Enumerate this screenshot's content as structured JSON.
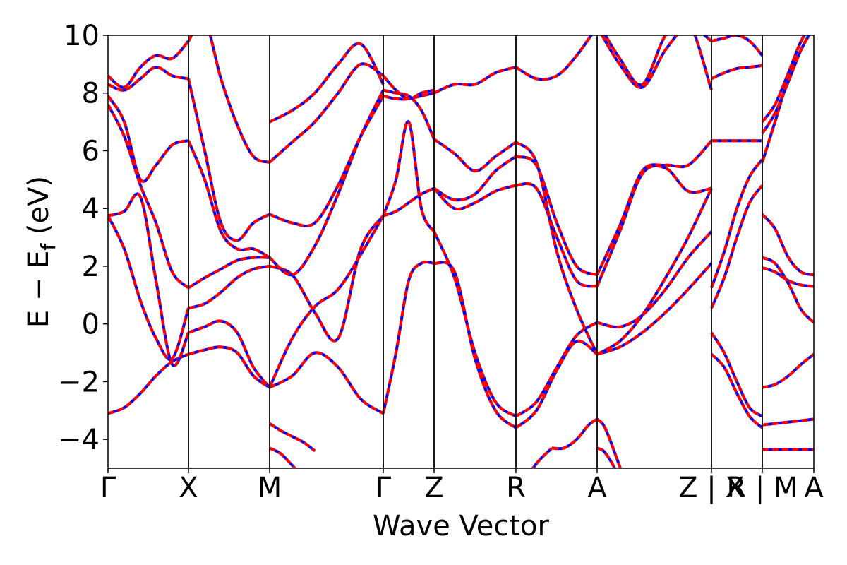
{
  "chart_data": {
    "type": "line",
    "title": "",
    "xlabel": "Wave Vector",
    "ylabel": "E − E",
    "ylabel_subscript": "f",
    "ylabel_unit": " (eV)",
    "ylim": [
      -5,
      10
    ],
    "yticks": [
      -4,
      -2,
      0,
      2,
      4,
      6,
      8,
      10
    ],
    "ytick_labels": [
      "−4",
      "−2",
      "0",
      "2",
      "4",
      "6",
      "8",
      "10"
    ],
    "xlim": [
      0,
      100
    ],
    "xticks": [
      0,
      11.4,
      22.9,
      39.0,
      46.2,
      57.8,
      69.3,
      85.5,
      92.7,
      100
    ],
    "xtick_labels": [
      "Γ",
      "X",
      "M",
      "Γ",
      "Z",
      "R",
      "A",
      "Z | X",
      "R | M",
      "A"
    ],
    "colors": {
      "series_a": "#0000ff",
      "series_b": "#ff0000",
      "axes": "#000000"
    },
    "grid": false,
    "series": [
      {
        "segment": 0,
        "x": [
          0,
          2.3,
          4.6,
          6.8,
          9.1,
          11.4
        ],
        "y": [
          -3.1,
          -2.9,
          -2.4,
          -1.8,
          -1.3,
          -1.05
        ]
      },
      {
        "segment": 0,
        "x": [
          0,
          2.3,
          4.6,
          6.8,
          9.1,
          11.4
        ],
        "y": [
          3.75,
          3.9,
          4.4,
          1.5,
          -1.4,
          -0.3
        ]
      },
      {
        "segment": 0,
        "x": [
          0,
          2.3,
          4.6,
          6.8,
          9.1,
          11.4
        ],
        "y": [
          3.75,
          2.6,
          0.8,
          -0.5,
          -1.2,
          0.55
        ]
      },
      {
        "segment": 0,
        "x": [
          0,
          2.3,
          4.6,
          6.8,
          9.1,
          11.4
        ],
        "y": [
          7.6,
          6.5,
          4.8,
          3.5,
          1.8,
          1.25
        ]
      },
      {
        "segment": 0,
        "x": [
          0,
          2.3,
          4.6,
          6.8,
          9.1,
          11.4
        ],
        "y": [
          7.9,
          7.0,
          5.0,
          5.5,
          6.2,
          6.35
        ]
      },
      {
        "segment": 0,
        "x": [
          0,
          2.3,
          4.6,
          6.8,
          9.1,
          11.4
        ],
        "y": [
          8.6,
          8.2,
          8.9,
          9.3,
          9.2,
          9.8
        ]
      },
      {
        "segment": 0,
        "x": [
          0,
          2.3,
          4.6,
          6.8,
          9.1,
          11.4
        ],
        "y": [
          8.3,
          8.1,
          8.5,
          8.9,
          8.6,
          8.5
        ]
      },
      {
        "segment": 1,
        "x": [
          11.4,
          13.7,
          16.0,
          18.3,
          20.6,
          22.9
        ],
        "y": [
          -1.05,
          -0.9,
          -0.8,
          -1.0,
          -1.8,
          -2.2
        ]
      },
      {
        "segment": 1,
        "x": [
          11.4,
          13.7,
          16.0,
          18.3,
          20.6,
          22.9
        ],
        "y": [
          -0.3,
          -0.1,
          0.1,
          -0.3,
          -1.5,
          -2.2
        ]
      },
      {
        "segment": 1,
        "x": [
          11.4,
          13.7,
          16.0,
          18.3,
          20.6,
          22.9
        ],
        "y": [
          0.55,
          0.7,
          1.1,
          1.6,
          1.9,
          2.0
        ]
      },
      {
        "segment": 1,
        "x": [
          11.4,
          13.7,
          16.0,
          18.3,
          20.6,
          22.9
        ],
        "y": [
          1.25,
          1.6,
          1.9,
          2.2,
          2.3,
          2.3
        ]
      },
      {
        "segment": 1,
        "x": [
          11.4,
          13.7,
          16.0,
          18.3,
          20.6,
          22.9
        ],
        "y": [
          6.35,
          5.0,
          3.2,
          2.6,
          2.6,
          2.3
        ]
      },
      {
        "segment": 1,
        "x": [
          11.4,
          13.7,
          16.0,
          18.3,
          20.6,
          22.9
        ],
        "y": [
          8.5,
          6.0,
          3.5,
          2.9,
          3.5,
          3.8
        ]
      },
      {
        "segment": 1,
        "x": [
          11.4,
          13.7,
          16.0,
          18.3,
          20.6,
          22.9
        ],
        "y": [
          9.8,
          10.5,
          8.5,
          6.9,
          5.8,
          5.6
        ]
      },
      {
        "segment": 2,
        "x": [
          22.9,
          26.1,
          29.3,
          32.6,
          35.8,
          39.0
        ],
        "y": [
          -2.2,
          -1.8,
          -1.0,
          -1.5,
          -2.6,
          -3.1
        ]
      },
      {
        "segment": 2,
        "x": [
          22.9,
          26.1,
          29.3,
          32.6,
          35.8,
          39.0
        ],
        "y": [
          -2.2,
          -0.5,
          0.6,
          1.2,
          2.4,
          3.75
        ]
      },
      {
        "segment": 2,
        "x": [
          22.9,
          26.1,
          29.3,
          32.6,
          35.8,
          39.0
        ],
        "y": [
          2.0,
          1.7,
          0.4,
          -0.5,
          2.6,
          3.75
        ]
      },
      {
        "segment": 2,
        "x": [
          22.9,
          26.1,
          29.3,
          32.6,
          35.8,
          39.0
        ],
        "y": [
          2.3,
          1.7,
          2.7,
          4.5,
          6.5,
          8.1
        ]
      },
      {
        "segment": 2,
        "x": [
          22.9,
          26.1,
          29.3,
          32.6,
          35.8,
          39.0
        ],
        "y": [
          3.8,
          3.5,
          3.5,
          4.8,
          6.5,
          7.9
        ]
      },
      {
        "segment": 2,
        "x": [
          22.9,
          26.1,
          29.3,
          32.6,
          35.8,
          39.0
        ],
        "y": [
          5.6,
          6.3,
          7.0,
          8.0,
          9.0,
          8.6
        ]
      },
      {
        "segment": 2,
        "x": [
          22.9,
          26.1,
          29.3,
          32.6,
          35.8,
          39.0
        ],
        "y": [
          7.0,
          7.4,
          8.0,
          9.0,
          9.7,
          8.3
        ]
      },
      {
        "segment": 3,
        "x": [
          39.0,
          40.8,
          42.6,
          44.4,
          46.2
        ],
        "y": [
          -3.1,
          -1.0,
          1.5,
          2.1,
          2.1
        ]
      },
      {
        "segment": 3,
        "x": [
          39.0,
          40.8,
          42.6,
          44.4,
          46.2
        ],
        "y": [
          3.75,
          3.9,
          4.2,
          4.5,
          4.7
        ]
      },
      {
        "segment": 3,
        "x": [
          39.0,
          40.8,
          42.6,
          44.4,
          46.2
        ],
        "y": [
          3.75,
          5.0,
          7.0,
          4.0,
          3.2
        ]
      },
      {
        "segment": 3,
        "x": [
          39.0,
          40.8,
          42.6,
          44.4,
          46.2
        ],
        "y": [
          7.9,
          7.8,
          7.8,
          7.9,
          8.0
        ]
      },
      {
        "segment": 3,
        "x": [
          39.0,
          40.8,
          42.6,
          44.4,
          46.2
        ],
        "y": [
          8.1,
          8.0,
          7.9,
          7.4,
          6.4
        ]
      },
      {
        "segment": 3,
        "x": [
          39.0,
          40.8,
          42.6,
          44.4,
          46.2
        ],
        "y": [
          8.6,
          8.1,
          7.8,
          8.0,
          8.1
        ]
      },
      {
        "segment": 4,
        "x": [
          46.2,
          49.1,
          52.0,
          54.9,
          57.8
        ],
        "y": [
          2.1,
          1.8,
          -1.2,
          -3.0,
          -3.6
        ]
      },
      {
        "segment": 4,
        "x": [
          46.2,
          49.1,
          52.0,
          54.9,
          57.8
        ],
        "y": [
          3.2,
          1.6,
          -1.0,
          -2.7,
          -3.2
        ]
      },
      {
        "segment": 4,
        "x": [
          46.2,
          49.1,
          52.0,
          54.9,
          57.8
        ],
        "y": [
          4.7,
          4.0,
          4.2,
          4.6,
          4.8
        ]
      },
      {
        "segment": 4,
        "x": [
          46.2,
          49.1,
          52.0,
          54.9,
          57.8
        ],
        "y": [
          4.7,
          4.3,
          4.5,
          5.3,
          5.8
        ]
      },
      {
        "segment": 4,
        "x": [
          46.2,
          49.1,
          52.0,
          54.9,
          57.8
        ],
        "y": [
          6.4,
          5.9,
          5.3,
          5.8,
          6.3
        ]
      },
      {
        "segment": 4,
        "x": [
          46.2,
          49.1,
          52.0,
          54.9,
          57.8
        ],
        "y": [
          8.0,
          8.3,
          8.3,
          8.7,
          8.9
        ]
      },
      {
        "segment": 5,
        "x": [
          57.8,
          60.7,
          63.6,
          66.4,
          69.3
        ],
        "y": [
          -3.6,
          -3.0,
          -1.6,
          -0.6,
          -1.05
        ]
      },
      {
        "segment": 5,
        "x": [
          57.8,
          60.7,
          63.6,
          66.4,
          69.3
        ],
        "y": [
          -3.2,
          -2.7,
          -1.5,
          -0.4,
          0.05
        ]
      },
      {
        "segment": 5,
        "x": [
          57.8,
          60.7,
          63.6,
          66.4,
          69.3
        ],
        "y": [
          4.8,
          4.7,
          3.0,
          1.5,
          1.3
        ]
      },
      {
        "segment": 5,
        "x": [
          57.8,
          60.7,
          63.6,
          66.4,
          69.3
        ],
        "y": [
          5.8,
          5.5,
          3.5,
          2.0,
          1.7
        ]
      },
      {
        "segment": 5,
        "x": [
          57.8,
          60.7,
          63.6,
          66.4,
          69.3
        ],
        "y": [
          6.3,
          5.6,
          2.5,
          0.5,
          -1.05
        ]
      },
      {
        "segment": 5,
        "x": [
          57.8,
          60.7,
          63.6,
          66.4,
          69.3
        ],
        "y": [
          8.9,
          8.5,
          8.6,
          9.3,
          10.3
        ]
      },
      {
        "segment": 6,
        "x": [
          69.3,
          72.5,
          75.7,
          79.0,
          82.2,
          85.5
        ],
        "y": [
          -1.05,
          -0.8,
          -0.3,
          0.4,
          1.2,
          2.1
        ]
      },
      {
        "segment": 6,
        "x": [
          69.3,
          72.5,
          75.7,
          79.0,
          82.2,
          85.5
        ],
        "y": [
          -1.05,
          -0.6,
          0.3,
          1.6,
          3.0,
          4.7
        ]
      },
      {
        "segment": 6,
        "x": [
          69.3,
          72.5,
          75.7,
          79.0,
          82.2,
          85.5
        ],
        "y": [
          0.05,
          -0.1,
          0.3,
          1.2,
          2.3,
          3.2
        ]
      },
      {
        "segment": 6,
        "x": [
          69.3,
          72.5,
          75.7,
          79.0,
          82.2,
          85.5
        ],
        "y": [
          1.3,
          3.2,
          5.2,
          5.4,
          4.6,
          4.7
        ]
      },
      {
        "segment": 6,
        "x": [
          69.3,
          72.5,
          75.7,
          79.0,
          82.2,
          85.5
        ],
        "y": [
          1.7,
          3.4,
          5.3,
          5.5,
          5.5,
          6.35
        ]
      },
      {
        "segment": 6,
        "x": [
          69.3,
          72.5,
          75.7,
          79.0,
          82.2,
          85.5
        ],
        "y": [
          10.3,
          9.0,
          8.2,
          9.5,
          10.3,
          9.8
        ]
      },
      {
        "segment": 6,
        "x": [
          69.3,
          72.5,
          75.7,
          79.0,
          82.2,
          85.5
        ],
        "y": [
          10.5,
          9.2,
          8.3,
          10.0,
          10.5,
          8.1
        ]
      },
      {
        "segment": 7,
        "x": [
          85.5,
          87.3,
          89.1,
          90.9,
          92.7
        ],
        "y": [
          -1.05,
          -1.5,
          -2.4,
          -3.2,
          -3.6
        ]
      },
      {
        "segment": 7,
        "x": [
          85.5,
          87.3,
          89.1,
          90.9,
          92.7
        ],
        "y": [
          -0.3,
          -1.0,
          -2.0,
          -2.9,
          -3.2
        ]
      },
      {
        "segment": 7,
        "x": [
          85.5,
          87.3,
          89.1,
          90.9,
          92.7
        ],
        "y": [
          0.55,
          1.6,
          3.0,
          4.2,
          4.8
        ]
      },
      {
        "segment": 7,
        "x": [
          85.5,
          87.3,
          89.1,
          90.9,
          92.7
        ],
        "y": [
          1.25,
          2.5,
          4.0,
          5.1,
          5.7
        ]
      },
      {
        "segment": 7,
        "x": [
          85.5,
          87.3,
          89.1,
          90.9,
          92.7
        ],
        "y": [
          6.35,
          6.35,
          6.35,
          6.35,
          6.35
        ]
      },
      {
        "segment": 7,
        "x": [
          85.5,
          87.3,
          89.1,
          90.9,
          92.7
        ],
        "y": [
          8.5,
          8.7,
          8.85,
          8.9,
          8.95
        ]
      },
      {
        "segment": 7,
        "x": [
          85.5,
          87.3,
          89.1,
          90.9,
          92.7
        ],
        "y": [
          9.8,
          9.9,
          10.0,
          9.8,
          9.3
        ]
      },
      {
        "segment": 8,
        "x": [
          92.7,
          94.5,
          96.4,
          98.2,
          100
        ],
        "y": [
          -4.35,
          -4.35,
          -4.35,
          -4.35,
          -4.35
        ]
      },
      {
        "segment": 8,
        "x": [
          92.7,
          94.5,
          96.4,
          98.2,
          100
        ],
        "y": [
          -3.5,
          -3.45,
          -3.4,
          -3.35,
          -3.3
        ]
      },
      {
        "segment": 8,
        "x": [
          92.7,
          94.5,
          96.4,
          98.2,
          100
        ],
        "y": [
          -2.2,
          -2.1,
          -1.8,
          -1.4,
          -1.05
        ]
      },
      {
        "segment": 8,
        "x": [
          92.7,
          94.5,
          96.4,
          98.2,
          100
        ],
        "y": [
          1.95,
          1.8,
          1.5,
          1.35,
          1.3
        ]
      },
      {
        "segment": 8,
        "x": [
          92.7,
          94.5,
          96.4,
          98.2,
          100
        ],
        "y": [
          2.3,
          2.1,
          1.4,
          0.5,
          0.05
        ]
      },
      {
        "segment": 8,
        "x": [
          92.7,
          94.5,
          96.4,
          98.2,
          100
        ],
        "y": [
          3.8,
          3.3,
          2.3,
          1.8,
          1.7
        ]
      },
      {
        "segment": 8,
        "x": [
          92.7,
          94.5,
          96.4,
          98.2,
          100
        ],
        "y": [
          5.6,
          7.0,
          8.5,
          9.5,
          10.3
        ]
      },
      {
        "segment": 8,
        "x": [
          92.7,
          94.5,
          96.4,
          98.2,
          100
        ],
        "y": [
          6.6,
          7.3,
          8.4,
          9.5,
          10.3
        ]
      },
      {
        "segment": 8,
        "x": [
          92.7,
          94.5,
          96.4,
          98.2,
          100
        ],
        "y": [
          7.0,
          7.6,
          8.7,
          9.8,
          10.5
        ]
      },
      {
        "segment": 2,
        "x": [
          22.9,
          24.5,
          26.1,
          27.7,
          29.3
        ],
        "y": [
          -3.45,
          -3.7,
          -3.9,
          -4.1,
          -4.4
        ]
      },
      {
        "segment": 2,
        "x": [
          22.9,
          24.5,
          26.1,
          27.7,
          29.3
        ],
        "y": [
          -4.3,
          -4.5,
          -4.9,
          -5.3,
          -5.6
        ]
      },
      {
        "segment": 6,
        "x": [
          69.3,
          70.2,
          71.1,
          72.0,
          72.9
        ],
        "y": [
          -3.3,
          -3.5,
          -4.0,
          -4.6,
          -5.2
        ]
      },
      {
        "segment": 6,
        "x": [
          69.3,
          70.2,
          71.1,
          72.0,
          72.9
        ],
        "y": [
          -4.3,
          -4.4,
          -4.7,
          -5.1,
          -5.6
        ]
      },
      {
        "segment": 5,
        "x": [
          57.8,
          59.5,
          61.2,
          62.9
        ],
        "y": [
          -5.6,
          -5.2,
          -4.7,
          -4.3
        ]
      },
      {
        "segment": 5,
        "x": [
          62.9,
          64.6,
          66.4,
          68.1,
          69.3
        ],
        "y": [
          -4.3,
          -4.3,
          -4.0,
          -3.5,
          -3.3
        ]
      }
    ]
  }
}
